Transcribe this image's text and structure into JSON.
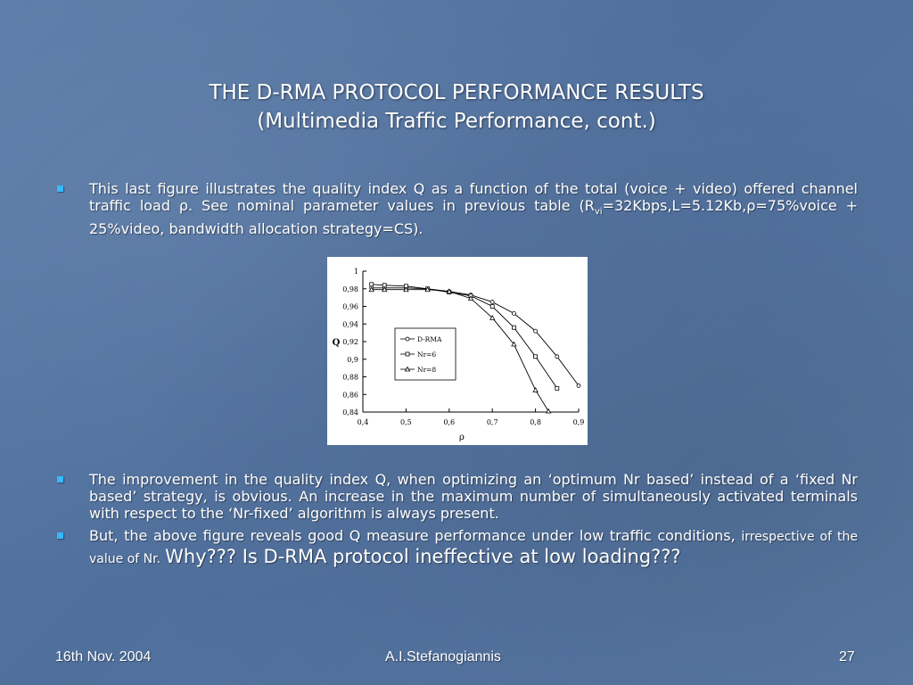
{
  "slide": {
    "title_line1": "THE D-RMA PROTOCOL PERFORMANCE RESULTS",
    "title_line2": "(Multimedia Traffic Performance, cont.)",
    "bullet1": {
      "part_a": "This last figure illustrates the quality index Q as a function of the total (voice + video) offered channel traffic load ρ. See nominal parameter values in previous table (R",
      "sub": "vi",
      "part_b": "=32Kbps,L=5.12Kb,ρ=75%voice + 25%video, bandwidth allocation strategy=CS)."
    },
    "bullet2": "The improvement in the quality index Q, when optimizing an ‘optimum Nr based’ instead of a ‘fixed Nr based’ strategy, is obvious. An increase in the maximum number of simultaneously activated terminals with respect to the ‘Nr-fixed’ algorithm is always present.",
    "bullet3": {
      "part_a": "But, the above figure reveals good Q measure performance under low traffic conditions,",
      "part_b": "irrespective of the value of Nr.",
      "part_c": "Why??? Is D-RMA protocol ineffective at low loading???"
    }
  },
  "footer": {
    "date": "16th Nov. 2004",
    "author": "A.I.Stefanogiannis",
    "page": "27"
  },
  "colors": {
    "bullet": "#37b8ff",
    "text": "#ffffff"
  },
  "chart_data": {
    "type": "line",
    "xlabel": "ρ",
    "ylabel": "Q",
    "xlim": [
      0.4,
      0.9
    ],
    "ylim": [
      0.84,
      1.0
    ],
    "x_ticks": [
      "0,4",
      "0,5",
      "0,6",
      "0,7",
      "0,8",
      "0,9"
    ],
    "y_ticks": [
      "0,84",
      "0,86",
      "0,88",
      "0,9",
      "0,92",
      "0,94",
      "0,96",
      "0,98",
      "1"
    ],
    "legend_position": "center-left",
    "series": [
      {
        "name": "D-RMA",
        "marker": "circle",
        "x": [
          0.42,
          0.45,
          0.5,
          0.55,
          0.6,
          0.65,
          0.7,
          0.75,
          0.8,
          0.85,
          0.9
        ],
        "y": [
          0.981,
          0.981,
          0.981,
          0.98,
          0.977,
          0.973,
          0.965,
          0.952,
          0.932,
          0.903,
          0.87
        ]
      },
      {
        "name": "Nr=6",
        "marker": "square",
        "x": [
          0.42,
          0.45,
          0.5,
          0.55,
          0.6,
          0.65,
          0.7,
          0.75,
          0.8,
          0.85
        ],
        "y": [
          0.985,
          0.984,
          0.983,
          0.98,
          0.976,
          0.972,
          0.96,
          0.936,
          0.903,
          0.867
        ]
      },
      {
        "name": "Nr=8",
        "marker": "triangle",
        "x": [
          0.42,
          0.45,
          0.5,
          0.55,
          0.6,
          0.65,
          0.7,
          0.75,
          0.8,
          0.83
        ],
        "y": [
          0.979,
          0.979,
          0.979,
          0.979,
          0.977,
          0.969,
          0.947,
          0.917,
          0.865,
          0.841
        ]
      }
    ]
  }
}
